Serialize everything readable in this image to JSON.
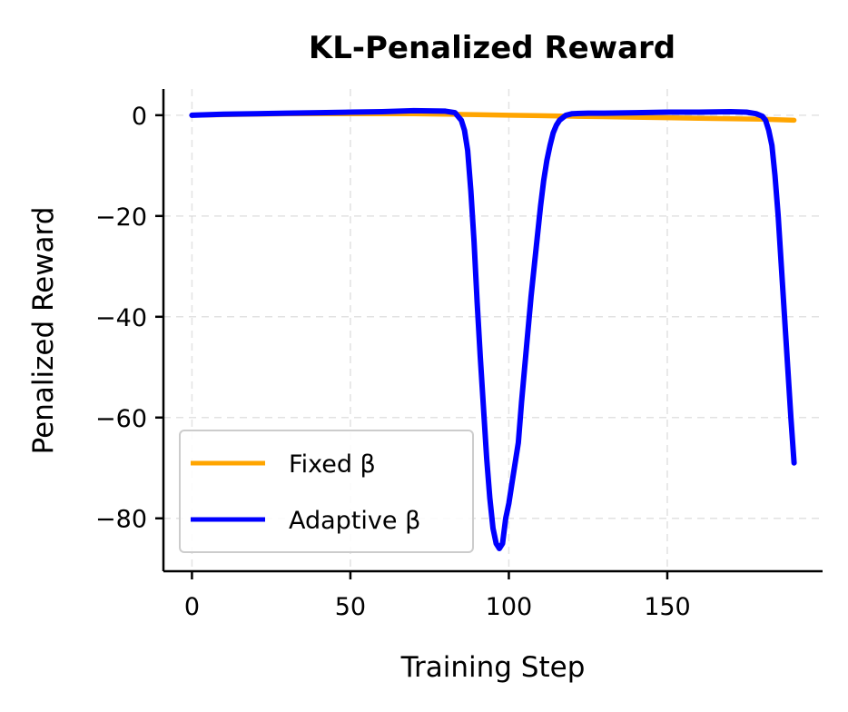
{
  "chart_data": {
    "type": "line",
    "title": "KL-Penalized Reward",
    "xlabel": "Training Step",
    "ylabel": "Penalized Reward",
    "xlim": [
      -9,
      199
    ],
    "ylim": [
      -90.5,
      5.2
    ],
    "xticks": [
      0,
      50,
      100,
      150
    ],
    "yticks": [
      0,
      -20,
      -40,
      -60,
      -80
    ],
    "xtick_labels": [
      "0",
      "50",
      "100",
      "150"
    ],
    "ytick_labels": [
      "0",
      "−20",
      "−40",
      "−60",
      "−80"
    ],
    "grid": true,
    "legend_position": "lower-left",
    "series": [
      {
        "name": "Fixed β",
        "color": "#ffa500",
        "x": [
          0,
          10,
          20,
          30,
          40,
          50,
          60,
          70,
          80,
          90,
          100,
          110,
          120,
          130,
          140,
          150,
          160,
          170,
          180,
          190
        ],
        "y": [
          0,
          0.1,
          0.2,
          0.3,
          0.3,
          0.3,
          0.3,
          0.3,
          0.2,
          0.1,
          0,
          -0.1,
          -0.2,
          -0.3,
          -0.4,
          -0.5,
          -0.6,
          -0.7,
          -0.8,
          -1.0
        ]
      },
      {
        "name": "Adaptive β",
        "color": "#0000ff",
        "x": [
          0,
          10,
          20,
          30,
          40,
          50,
          60,
          70,
          80,
          83,
          85,
          86,
          87,
          88,
          89,
          90,
          91,
          92,
          93,
          94,
          95,
          96,
          97,
          98,
          99,
          100,
          101,
          102,
          103,
          104,
          105,
          106,
          107,
          108,
          109,
          110,
          111,
          112,
          113,
          114,
          115,
          116,
          117,
          118,
          120,
          125,
          130,
          140,
          150,
          160,
          170,
          175,
          178,
          180,
          181,
          182,
          183,
          184,
          185,
          186,
          187,
          188,
          189,
          190
        ],
        "y": [
          0,
          0.2,
          0.3,
          0.4,
          0.5,
          0.6,
          0.7,
          0.9,
          0.8,
          0.5,
          -1,
          -3,
          -7,
          -15,
          -25,
          -37,
          -48,
          -58,
          -68,
          -76,
          -82,
          -85,
          -86,
          -85,
          -80,
          -77,
          -73,
          -69,
          -65,
          -57,
          -50,
          -43,
          -36,
          -30,
          -24,
          -18,
          -13,
          -9,
          -6,
          -3.5,
          -2,
          -1,
          -0.5,
          0,
          0.3,
          0.4,
          0.4,
          0.5,
          0.6,
          0.6,
          0.7,
          0.6,
          0.3,
          -0.2,
          -1,
          -3,
          -6,
          -12,
          -20,
          -30,
          -40,
          -50,
          -60,
          -69
        ]
      }
    ]
  }
}
